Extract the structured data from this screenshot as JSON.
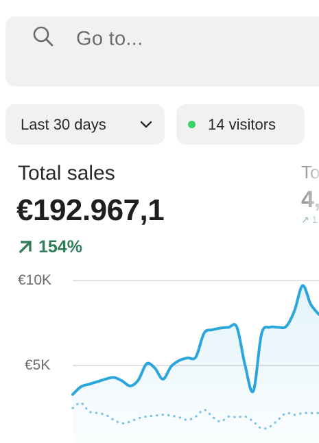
{
  "search": {
    "placeholder": "Go to...",
    "icon": "search-icon"
  },
  "filters": {
    "date_range": "Last 30 days",
    "date_range_icon": "chevron-down-icon",
    "visitors": "14 visitors",
    "visitors_dot_color": "#3ad16a"
  },
  "metric": {
    "title": "Total sales",
    "value": "€192.967,1",
    "change": "154%",
    "change_direction": "up",
    "change_color": "#2f7d5a"
  },
  "metric_partial": {
    "title": "To",
    "value": "4,",
    "change": "↗ 1"
  },
  "chart_data": {
    "type": "line",
    "y_tick_labels": [
      "€10K",
      "€5K"
    ],
    "ylim": [
      0,
      10000
    ],
    "grid": true,
    "series": [
      {
        "style": "solid",
        "color": "#2aa6dc",
        "fill": true,
        "values": [
          3300,
          3750,
          3900,
          4050,
          4200,
          4300,
          4100,
          3800,
          4150,
          5100,
          4850,
          4200,
          4950,
          5300,
          5450,
          5500,
          6900,
          7100,
          7200,
          7250,
          7250,
          5000,
          3500,
          6850,
          7250,
          7250,
          7300,
          8200,
          9700,
          8600,
          8000
        ]
      },
      {
        "style": "dotted",
        "color": "#7fc4e4",
        "fill": false,
        "values": [
          2500,
          2800,
          2300,
          2200,
          2100,
          1800,
          1600,
          1700,
          1900,
          2000,
          2050,
          2100,
          2050,
          1950,
          1800,
          2000,
          2400,
          2000,
          1700,
          2000,
          1950,
          2000,
          1700,
          1300,
          1400,
          1800,
          2200,
          2100,
          2200,
          2200,
          2200
        ]
      }
    ]
  }
}
